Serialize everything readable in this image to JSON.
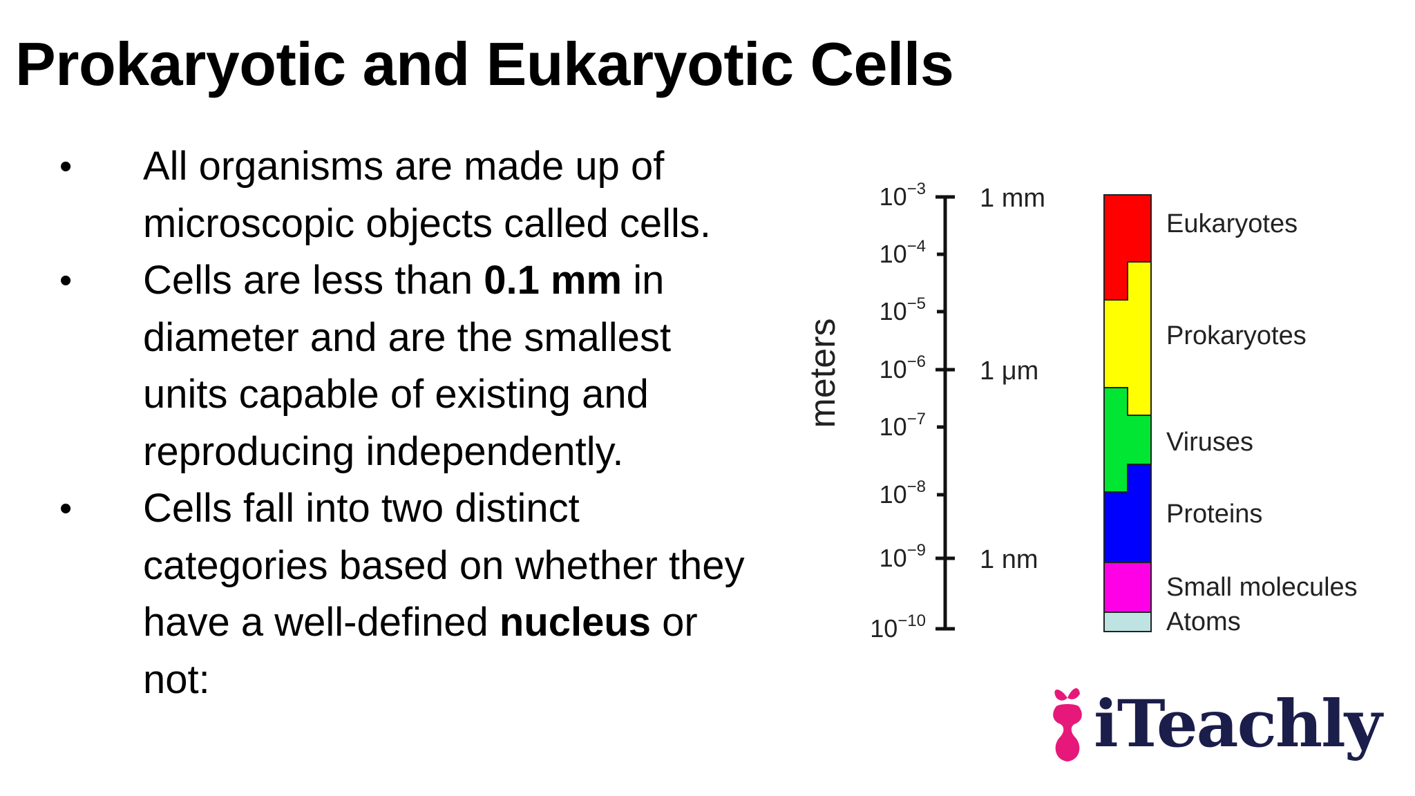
{
  "title": "Prokaryotic and Eukaryotic Cells",
  "bullets": [
    {
      "bullet": "•",
      "parts": [
        {
          "text": "All organisms are made up of microscopic objects called cells.",
          "bold": false
        }
      ]
    },
    {
      "bullet": "•",
      "parts": [
        {
          "text": "Cells are less than ",
          "bold": false
        },
        {
          "text": "0.1 mm",
          "bold": true
        },
        {
          "text": " in diameter and are the smallest units capable of existing and reproducing independently.",
          "bold": false
        }
      ]
    },
    {
      "bullet": "•",
      "parts": [
        {
          "text": "Cells fall into two distinct categories based on whether they have a well-defined ",
          "bold": false
        },
        {
          "text": "nucleus",
          "bold": true
        },
        {
          "text": " or not:",
          "bold": false
        }
      ]
    }
  ],
  "scale_figure": {
    "axis_title": "meters",
    "ticks": [
      {
        "base": "10",
        "exp": "−3",
        "unit": "1 mm"
      },
      {
        "base": "10",
        "exp": "−4",
        "unit": ""
      },
      {
        "base": "10",
        "exp": "−5",
        "unit": ""
      },
      {
        "base": "10",
        "exp": "−6",
        "unit": "1 μm"
      },
      {
        "base": "10",
        "exp": "−7",
        "unit": ""
      },
      {
        "base": "10",
        "exp": "−8",
        "unit": ""
      },
      {
        "base": "10",
        "exp": "−9",
        "unit": "1 nm"
      },
      {
        "base": "10",
        "exp": "−10",
        "unit": ""
      }
    ],
    "categories": [
      {
        "name": "Eukaryotes",
        "color": "#ff0000"
      },
      {
        "name": "Prokaryotes",
        "color": "#ffff00"
      },
      {
        "name": "Viruses",
        "color": "#00e632"
      },
      {
        "name": "Proteins",
        "color": "#0000ff"
      },
      {
        "name": "Small molecules",
        "color": "#ff00e6"
      },
      {
        "name": "Atoms",
        "color": "#bfe3e3"
      }
    ]
  },
  "logo": {
    "text": "iTeachly",
    "apple_color": "#e6197a",
    "text_color": "#1b1d4a"
  }
}
